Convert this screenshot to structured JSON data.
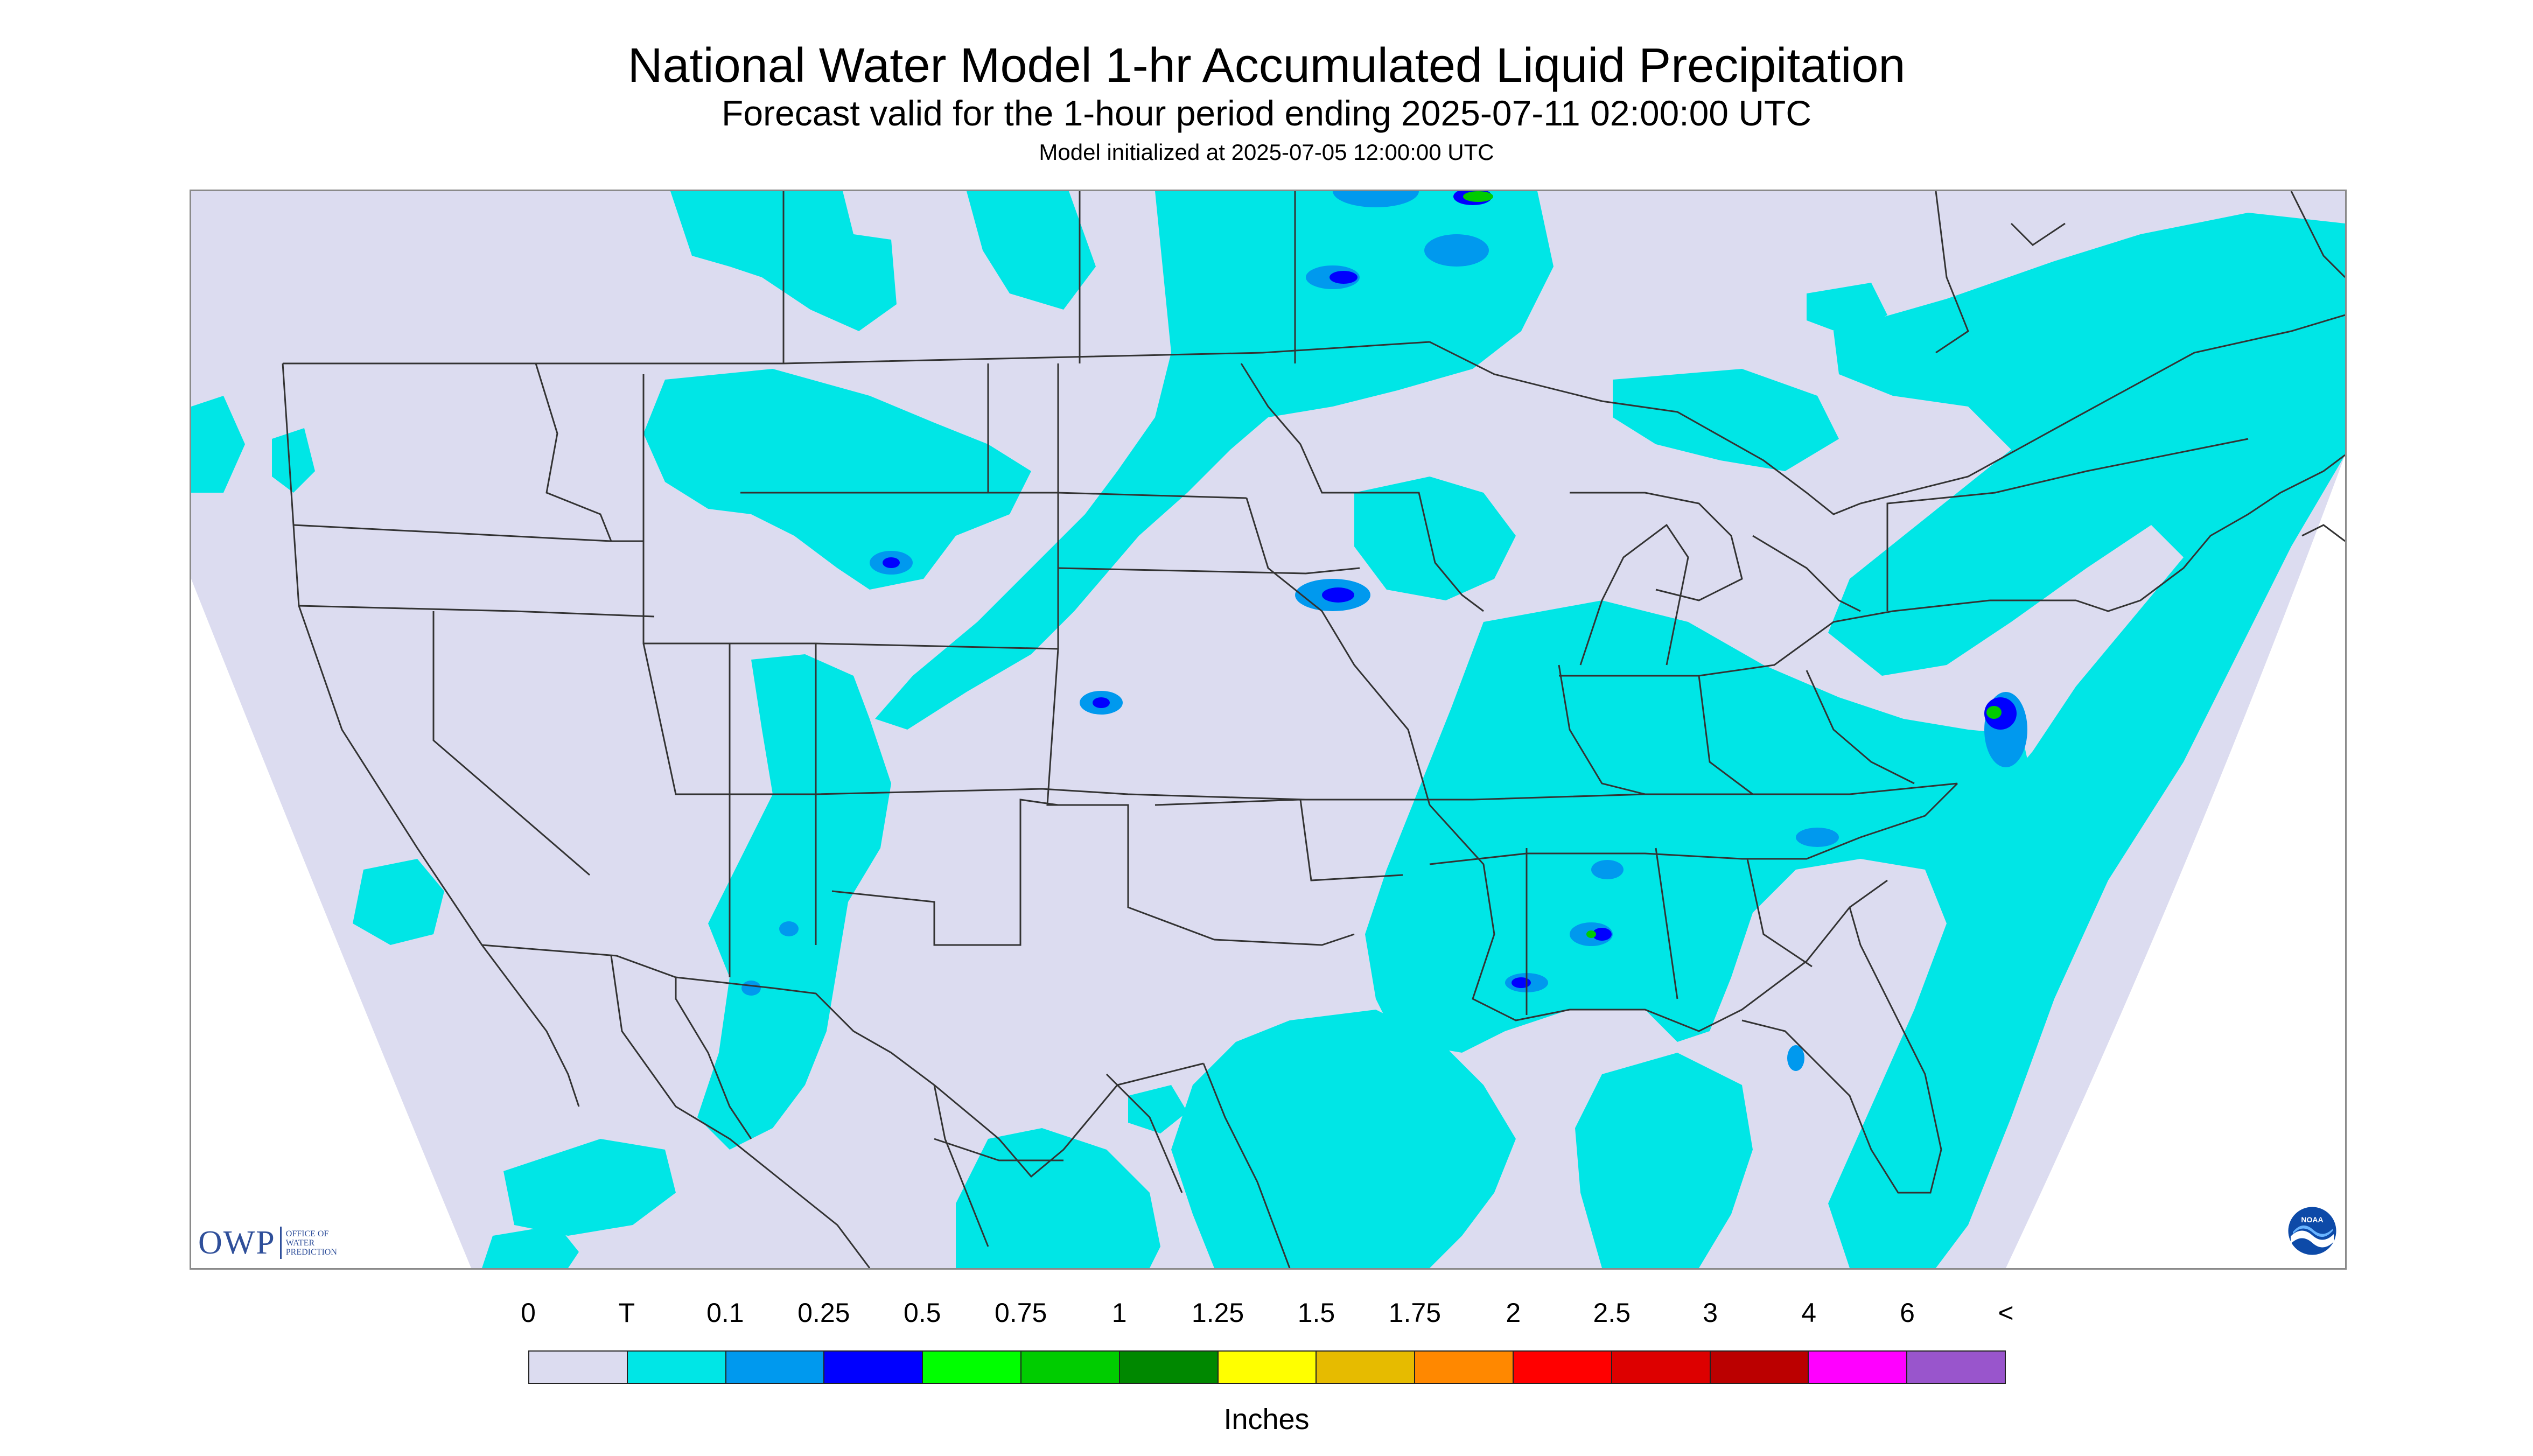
{
  "header": {
    "title": "National Water Model 1-hr Accumulated Liquid Precipitation",
    "subtitle": "Forecast valid for the 1-hour period ending 2025-07-11 02:00:00 UTC",
    "init": "Model initialized at 2025-07-05 12:00:00 UTC"
  },
  "map": {
    "colors": {
      "no_data": "#ffffff",
      "zero": "#dcdcf0",
      "trace": "#00e6e6",
      "boundary": "#333333"
    }
  },
  "logos": {
    "owp_mark": "OWP",
    "owp_line1": "OFFICE OF",
    "owp_line2": "WATER",
    "owp_line3": "PREDICTION",
    "noaa": "NOAA"
  },
  "legend": {
    "labels": [
      "0",
      "T",
      "0.1",
      "0.25",
      "0.5",
      "0.75",
      "1",
      "1.25",
      "1.5",
      "1.75",
      "2",
      "2.5",
      "3",
      "4",
      "6",
      "<"
    ],
    "colors": [
      "#dcdcf0",
      "#00e6e6",
      "#0099ee",
      "#0000ff",
      "#00ff00",
      "#00cc00",
      "#008800",
      "#ffff00",
      "#e6bb00",
      "#ff8800",
      "#ff0000",
      "#dd0000",
      "#bb0000",
      "#ff00ff",
      "#9955cc"
    ],
    "units": "Inches"
  }
}
